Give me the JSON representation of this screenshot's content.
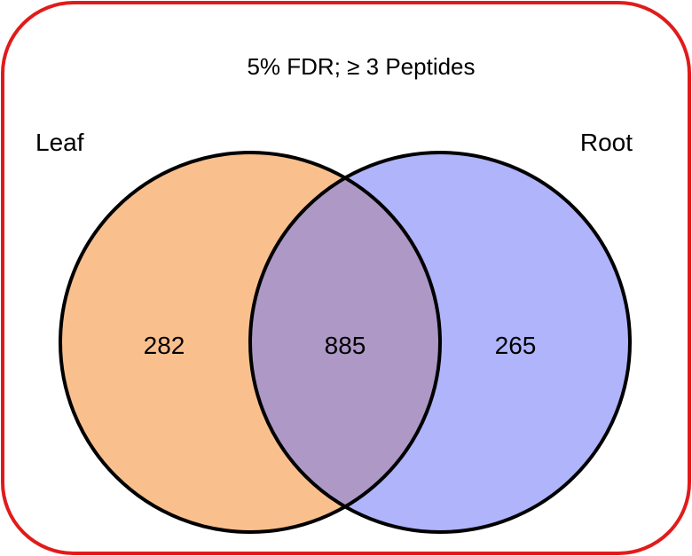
{
  "diagram": {
    "type": "venn",
    "title": "5% FDR;  ≥  3 Peptides",
    "sets": [
      {
        "id": "leaf",
        "label": "Leaf",
        "only_count": "282",
        "color": "#f9c08e"
      },
      {
        "id": "root",
        "label": "Root",
        "only_count": "265",
        "color": "#afb4fb"
      }
    ],
    "intersection": {
      "count": "885",
      "color": "#ad98c6"
    },
    "colors": {
      "frame_border": "#e11b1b",
      "circle_outline": "#000000"
    }
  }
}
